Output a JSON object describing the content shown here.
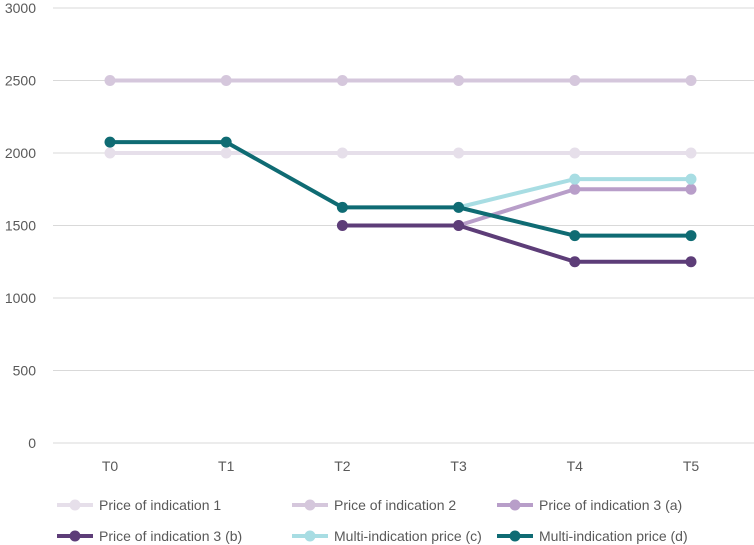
{
  "chart_data": {
    "type": "line",
    "title": "",
    "xlabel": "",
    "ylabel": "",
    "categories": [
      "T0",
      "T1",
      "T2",
      "T3",
      "T4",
      "T5"
    ],
    "ylim": [
      0,
      3000
    ],
    "yticks": [
      0,
      500,
      1000,
      1500,
      2000,
      2500,
      3000
    ],
    "grid": true,
    "legend_position": "bottom",
    "series": [
      {
        "name": "Price of indication 1",
        "color": "#e6dfea",
        "values": [
          2000,
          2000,
          2000,
          2000,
          2000,
          2000
        ]
      },
      {
        "name": "Price of indication 2",
        "color": "#d5c7dc",
        "values": [
          2500,
          2500,
          2500,
          2500,
          2500,
          2500
        ]
      },
      {
        "name": "Price of indication 3 (a)",
        "color": "#b89ec9",
        "values": [
          null,
          null,
          null,
          1500,
          1750,
          1750
        ]
      },
      {
        "name": "Price of indication 3 (b)",
        "color": "#5d3d78",
        "values": [
          null,
          null,
          1500,
          1500,
          1250,
          1250
        ]
      },
      {
        "name": "Multi-indication price (c)",
        "color": "#a8dde3",
        "values": [
          null,
          null,
          null,
          1625,
          1820,
          1820
        ]
      },
      {
        "name": "Multi-indication price (d)",
        "color": "#0f6b73",
        "values": [
          2075,
          2075,
          1625,
          1625,
          1430,
          1430
        ]
      }
    ]
  }
}
